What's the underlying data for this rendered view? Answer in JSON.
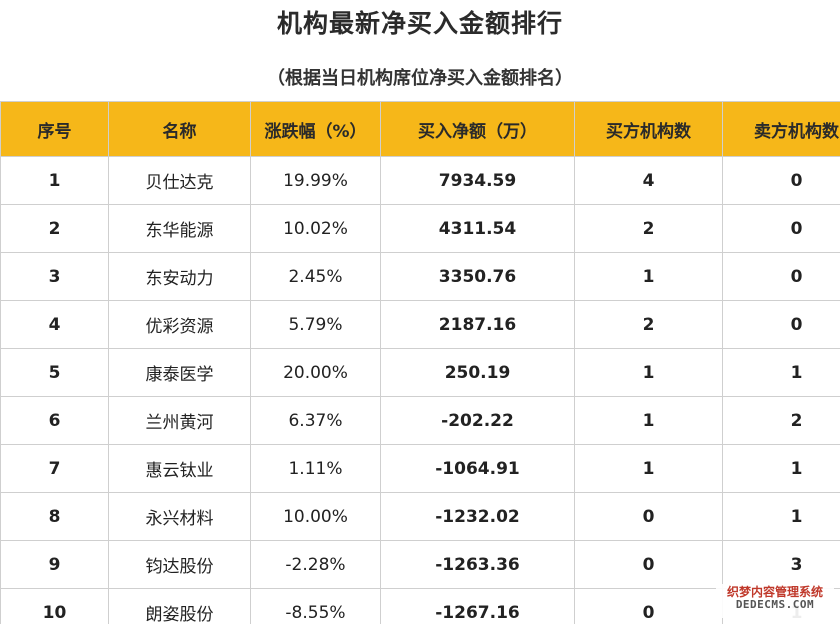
{
  "title": "机构最新净买入金额排行",
  "subtitle": "（根据当日机构席位净买入金额排名）",
  "table": {
    "headers": [
      "序号",
      "名称",
      "涨跌幅（%）",
      "买入净额（万）",
      "买方机构数",
      "卖方机构数"
    ],
    "rows": [
      [
        "1",
        "贝仕达克",
        "19.99%",
        "7934.59",
        "4",
        "0"
      ],
      [
        "2",
        "东华能源",
        "10.02%",
        "4311.54",
        "2",
        "0"
      ],
      [
        "3",
        "东安动力",
        "2.45%",
        "3350.76",
        "1",
        "0"
      ],
      [
        "4",
        "优彩资源",
        "5.79%",
        "2187.16",
        "2",
        "0"
      ],
      [
        "5",
        "康泰医学",
        "20.00%",
        "250.19",
        "1",
        "1"
      ],
      [
        "6",
        "兰州黄河",
        "6.37%",
        "-202.22",
        "1",
        "2"
      ],
      [
        "7",
        "惠云钛业",
        "1.11%",
        "-1064.91",
        "1",
        "1"
      ],
      [
        "8",
        "永兴材料",
        "10.00%",
        "-1232.02",
        "0",
        "1"
      ],
      [
        "9",
        "钧达股份",
        "-2.28%",
        "-1263.36",
        "0",
        "3"
      ],
      [
        "10",
        "朗姿股份",
        "-8.55%",
        "-1267.16",
        "0",
        "1"
      ]
    ]
  },
  "watermark": {
    "line1": "织梦内容管理系统",
    "line2": "DEDECMS.COM"
  },
  "colors": {
    "header_bg": "#f6b719",
    "border": "#cfcfcf",
    "text": "#222222"
  }
}
